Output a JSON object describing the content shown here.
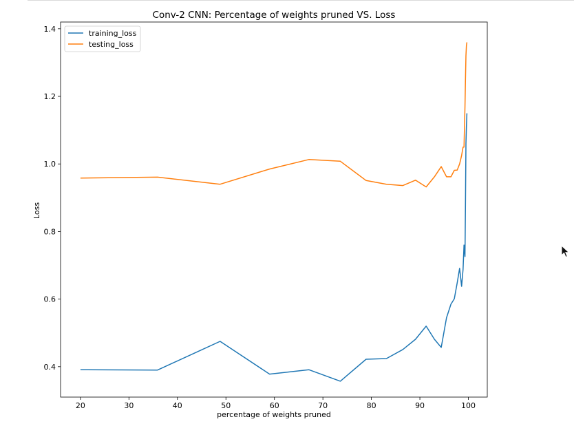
{
  "chart_data": {
    "type": "line",
    "title": "Conv-2 CNN: Percentage of weights pruned VS. Loss",
    "xlabel": "percentage of weights pruned",
    "ylabel": "Loss",
    "xlim": [
      15.9,
      103.9
    ],
    "ylim": [
      0.31,
      1.42
    ],
    "xticks": [
      20,
      30,
      40,
      50,
      60,
      70,
      80,
      90,
      100
    ],
    "yticks": [
      0.4,
      0.6,
      0.8,
      1.0,
      1.2,
      1.4
    ],
    "xtick_labels": [
      "20",
      "30",
      "40",
      "50",
      "60",
      "70",
      "80",
      "90",
      "100"
    ],
    "ytick_labels": [
      "0.4",
      "0.6",
      "0.8",
      "1.0",
      "1.2",
      "1.4"
    ],
    "legend_position": "top-left",
    "grid": false,
    "series": [
      {
        "name": "training_loss",
        "color": "#1f77b4",
        "x": [
          20,
          35.9,
          48.8,
          59,
          67.1,
          73.6,
          78.9,
          83.1,
          86.5,
          89.1,
          91.3,
          93,
          94.4,
          95.5,
          96.4,
          97.1,
          97.7,
          98.2,
          98.6,
          98.9,
          99.1,
          99.3,
          99.4,
          99.5,
          99.6,
          99.7
        ],
        "values": [
          0.391,
          0.39,
          0.475,
          0.378,
          0.391,
          0.357,
          0.422,
          0.424,
          0.451,
          0.481,
          0.52,
          0.481,
          0.457,
          0.545,
          0.585,
          0.601,
          0.648,
          0.691,
          0.638,
          0.688,
          0.76,
          0.726,
          0.88,
          1.06,
          1.11,
          1.15
        ]
      },
      {
        "name": "testing_loss",
        "color": "#ff7f0e",
        "x": [
          20,
          35.9,
          48.8,
          59,
          67.1,
          73.6,
          78.9,
          83.1,
          86.5,
          89.1,
          91.3,
          93,
          94.4,
          95.5,
          96.4,
          97.1,
          97.7,
          98.2,
          98.6,
          98.9,
          99.1,
          99.3,
          99.4,
          99.5,
          99.6,
          99.7
        ],
        "values": [
          0.958,
          0.961,
          0.94,
          0.985,
          1.013,
          1.008,
          0.951,
          0.94,
          0.936,
          0.952,
          0.932,
          0.962,
          0.992,
          0.962,
          0.962,
          0.981,
          0.982,
          1.0,
          1.025,
          1.05,
          1.05,
          1.17,
          1.25,
          1.32,
          1.35,
          1.36
        ]
      }
    ]
  },
  "cursor_icon": "mouse-pointer-icon"
}
